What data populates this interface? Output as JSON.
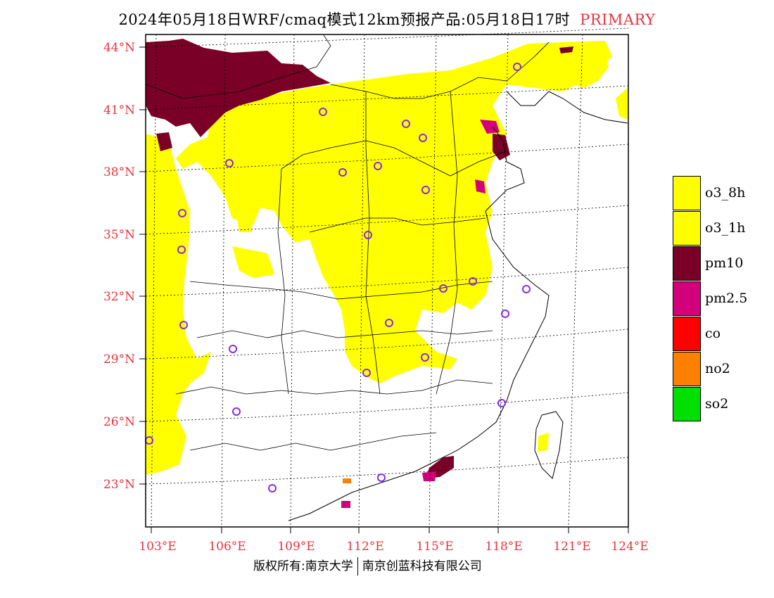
{
  "title": {
    "main": "2024年05月18日WRF/cmaq模式12km预报产品:05月18日17时",
    "tag": "PRIMARY"
  },
  "copyright": {
    "left": "版权所有:南京大学",
    "right": "南京创蓝科技有限公司"
  },
  "axes": {
    "lat_labels": [
      "44°N",
      "41°N",
      "38°N",
      "35°N",
      "32°N",
      "29°N",
      "26°N",
      "23°N"
    ],
    "lon_labels": [
      "103°E",
      "106°E",
      "109°E",
      "112°E",
      "115°E",
      "118°E",
      "121°E",
      "124°E"
    ],
    "label_color": "#e8343f"
  },
  "legend": {
    "items": [
      {
        "label": "o3_8h",
        "color": "#ffff00"
      },
      {
        "label": "o3_1h",
        "color": "#ffff00"
      },
      {
        "label": "pm10",
        "color": "#7a0028"
      },
      {
        "label": "pm2.5",
        "color": "#d2007a"
      },
      {
        "label": "co",
        "color": "#ff0000"
      },
      {
        "label": "no2",
        "color": "#ff7f00"
      },
      {
        "label": "so2",
        "color": "#00e000"
      }
    ]
  },
  "colors": {
    "o3": "#ffff00",
    "pm10": "#7a0028",
    "pm25": "#d2007a",
    "no2": "#ff7f00",
    "station": "#8a2be2"
  }
}
